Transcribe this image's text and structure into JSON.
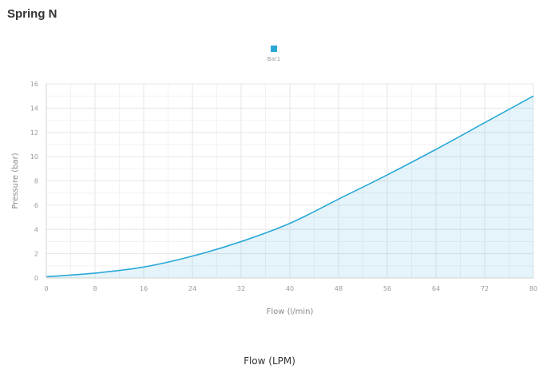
{
  "page": {
    "title": "Spring N",
    "footer_label": "Flow (LPM)"
  },
  "chart_data": {
    "type": "area",
    "xlabel": "Flow (l/min)",
    "ylabel": "Pressure (bar)",
    "xlim": [
      0,
      80
    ],
    "ylim": [
      0,
      16
    ],
    "x_ticks": [
      "0",
      "8",
      "16",
      "24",
      "32",
      "40",
      "48",
      "56",
      "64",
      "72",
      "80"
    ],
    "y_ticks": [
      "0",
      "2",
      "4",
      "6",
      "8",
      "10",
      "12",
      "14",
      "16"
    ],
    "grid": true,
    "legend_position": "top-center",
    "series": [
      {
        "name": "Bar1",
        "color": "#29a8d8",
        "x": [
          0,
          8,
          16,
          24,
          32,
          40,
          48,
          56,
          64,
          72,
          80
        ],
        "y": [
          0.1,
          0.4,
          0.9,
          1.8,
          3.0,
          4.5,
          6.5,
          8.5,
          10.6,
          12.8,
          15.0
        ]
      }
    ]
  }
}
